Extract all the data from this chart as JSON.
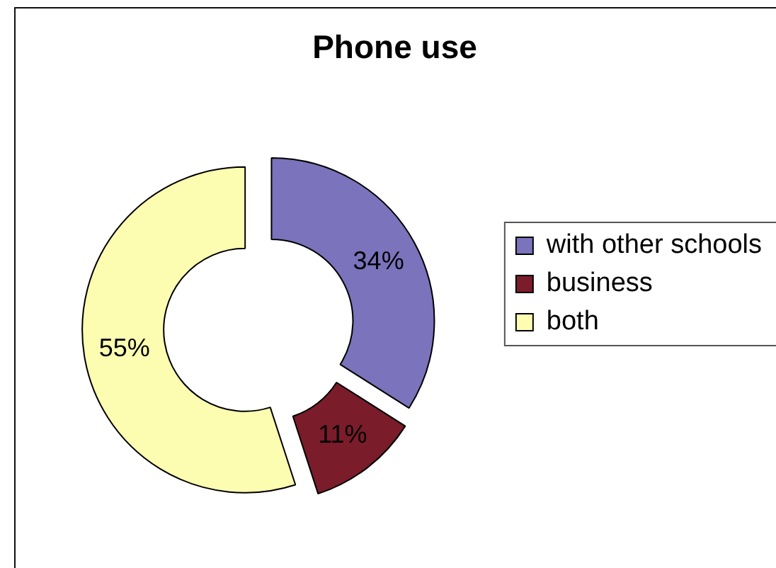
{
  "chart_data": {
    "type": "donut",
    "title": "Phone use",
    "categories": [
      "with other schools",
      "business",
      "both"
    ],
    "values": [
      34,
      11,
      55
    ],
    "colors": [
      "#7b73bb",
      "#7a1c2a",
      "#fdfdb2"
    ],
    "value_labels": [
      "34%",
      "11%",
      "55%"
    ],
    "legend": "right"
  }
}
